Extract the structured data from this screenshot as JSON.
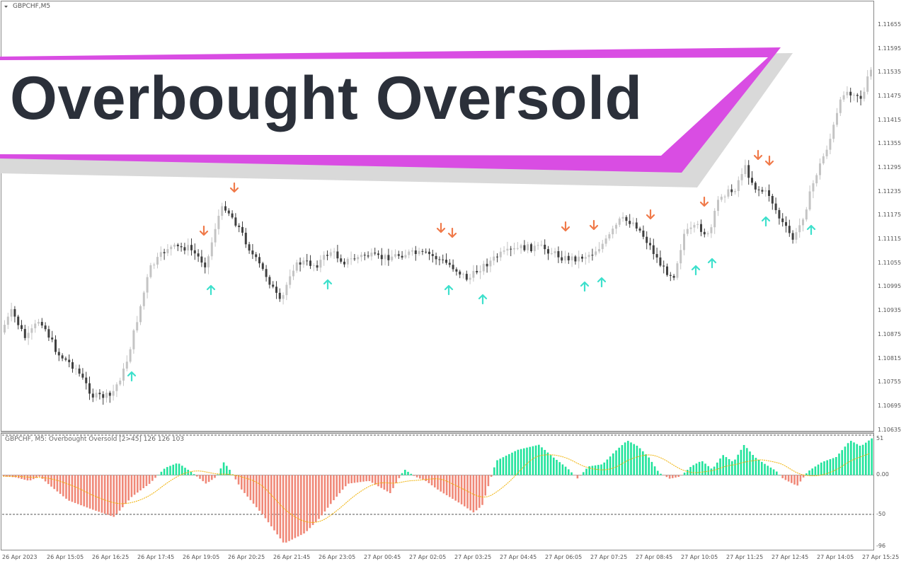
{
  "window": {
    "symbol": "GBPCHF,M5",
    "banner_title": "Overbought Oversold"
  },
  "indicator": {
    "label": "GBPCHF, M5: Overbought Oversold [2>45]  126 126 103",
    "levels": [
      "51",
      "0.00",
      "-50",
      "-96"
    ]
  },
  "price_axis": [
    "1.11655",
    "1.11595",
    "1.11535",
    "1.11475",
    "1.11415",
    "1.11355",
    "1.11295",
    "1.11235",
    "1.11175",
    "1.11115",
    "1.11055",
    "1.10995",
    "1.10935",
    "1.10875",
    "1.10815",
    "1.10755",
    "1.10695",
    "1.10635"
  ],
  "time_axis": [
    "26 Apr 2023",
    "26 Apr 15:05",
    "26 Apr 16:25",
    "26 Apr 17:45",
    "26 Apr 19:05",
    "26 Apr 20:25",
    "26 Apr 21:45",
    "26 Apr 23:05",
    "27 Apr 00:45",
    "27 Apr 02:05",
    "27 Apr 03:25",
    "27 Apr 04:45",
    "27 Apr 06:05",
    "27 Apr 07:25",
    "27 Apr 08:45",
    "27 Apr 10:05",
    "27 Apr 11:25",
    "27 Apr 12:45",
    "27 Apr 14:05",
    "27 Apr 15:25"
  ],
  "colors": {
    "banner_magenta": "#d94de3",
    "banner_shadow": "#d9d9d9",
    "title": "#2b303a",
    "up_arrow": "#3ee0cc",
    "down_arrow": "#f07a4a",
    "hist_positive": "#22e39c",
    "hist_negative": "#f08878",
    "signal_line": "#f0b000",
    "candle_bull": "#c4c4c4",
    "candle_bear": "#404040"
  }
}
